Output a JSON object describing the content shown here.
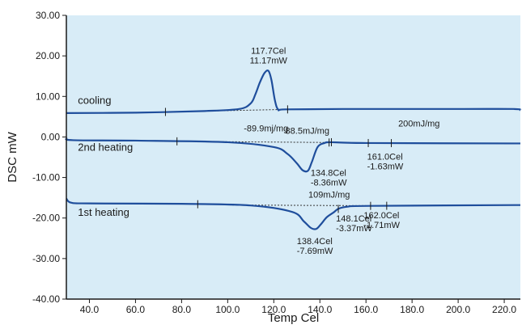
{
  "colors": {
    "plot_bg": "#d8ecf7",
    "curve": "#1f4e9c",
    "axis": "#1a1a1a",
    "baseline": "#333333"
  },
  "chart_data": {
    "type": "line",
    "title": "",
    "xlabel": "Temp Cel",
    "ylabel": "DSC mW",
    "xlim": [
      30,
      227
    ],
    "ylim": [
      -40,
      30
    ],
    "x_ticks": [
      "40.0",
      "60.0",
      "80.0",
      "100.0",
      "120.0",
      "140.0",
      "160.0",
      "180.0",
      "200.0",
      "220.0"
    ],
    "x_tick_values": [
      40,
      60,
      80,
      100,
      120,
      140,
      160,
      180,
      200,
      220
    ],
    "y_ticks": [
      "30.00",
      "20.00",
      "10.00",
      "0.00",
      "-10.00",
      "-20.00",
      "-30.00",
      "-40.00"
    ],
    "y_tick_values": [
      30,
      20,
      10,
      0,
      -10,
      -20,
      -30,
      -40
    ],
    "grid": false,
    "series": [
      {
        "name": "cooling",
        "x": [
          30,
          60,
          90,
          105,
          110,
          112,
          114,
          116,
          117.7,
          119,
          120.5,
          122,
          125,
          150,
          200,
          224,
          227
        ],
        "y": [
          5.9,
          6.0,
          6.4,
          6.9,
          8.3,
          10.5,
          13.5,
          15.8,
          16.3,
          14.0,
          9.0,
          6.7,
          6.8,
          6.9,
          6.9,
          6.9,
          6.6
        ],
        "label_x": 35,
        "label_y": 8.2,
        "markers": [
          73,
          126
        ],
        "baseline": [
          73,
          126
        ]
      },
      {
        "name": "2nd heating",
        "x": [
          30,
          33,
          60,
          100,
          120,
          126,
          130,
          132.5,
          134.8,
          136.5,
          139,
          142,
          145,
          160,
          227
        ],
        "y": [
          -0.3,
          -0.8,
          -0.9,
          -1.3,
          -2.5,
          -4.2,
          -6.5,
          -8.2,
          -8.36,
          -6.2,
          -2.5,
          -1.5,
          -1.3,
          -1.5,
          -1.6
        ],
        "label_x": 35,
        "label_y": -3.4,
        "markers": [
          78,
          144,
          145,
          161,
          171
        ],
        "baseline": [
          78,
          144
        ]
      },
      {
        "name": "1st heating",
        "x": [
          30,
          32,
          40,
          80,
          110,
          128,
          133,
          136,
          138.4,
          140.5,
          143,
          146,
          148.1,
          152,
          162,
          227
        ],
        "y": [
          -15.2,
          -16.2,
          -16.4,
          -16.5,
          -16.9,
          -18.5,
          -20.8,
          -22.4,
          -22.7,
          -21.5,
          -19.8,
          -18.6,
          -17.7,
          -17.2,
          -17.0,
          -16.8
        ],
        "label_x": 35,
        "label_y": -19.5,
        "markers": [
          87,
          148,
          162,
          169
        ],
        "baseline": [
          102,
          169
        ]
      }
    ],
    "annotations": [
      {
        "lines": [
          "117.7Cel",
          "11.17mW"
        ],
        "x": 117.7,
        "y": 20.5,
        "anchor": "middle"
      },
      {
        "lines": [
          "-89.9mj/mg"
        ],
        "x": 107.0,
        "y": 1.4,
        "anchor": "start"
      },
      {
        "lines": [
          "200mJ/mg"
        ],
        "x": 174.0,
        "y": 2.6,
        "anchor": "start"
      },
      {
        "lines": [
          "88.5mJ/mg"
        ],
        "x": 125.0,
        "y": 0.8,
        "anchor": "start"
      },
      {
        "lines": [
          "134.8Cel",
          "-8.36mW"
        ],
        "x": 136.0,
        "y": -9.6,
        "anchor": "start"
      },
      {
        "lines": [
          "161.0Cel",
          "-1.63mW"
        ],
        "x": 160.5,
        "y": -5.6,
        "anchor": "start"
      },
      {
        "lines": [
          "109mJ/mg"
        ],
        "x": 135.0,
        "y": -15.0,
        "anchor": "start"
      },
      {
        "lines": [
          "148.1Cel",
          "-3.37mW"
        ],
        "x": 147.0,
        "y": -20.9,
        "anchor": "start"
      },
      {
        "lines": [
          "162.0Cel",
          "-1.71mW"
        ],
        "x": 159.0,
        "y": -20.1,
        "anchor": "start"
      },
      {
        "lines": [
          "138.4Cel",
          "-7.69mW"
        ],
        "x": 130.0,
        "y": -26.4,
        "anchor": "start"
      }
    ]
  }
}
